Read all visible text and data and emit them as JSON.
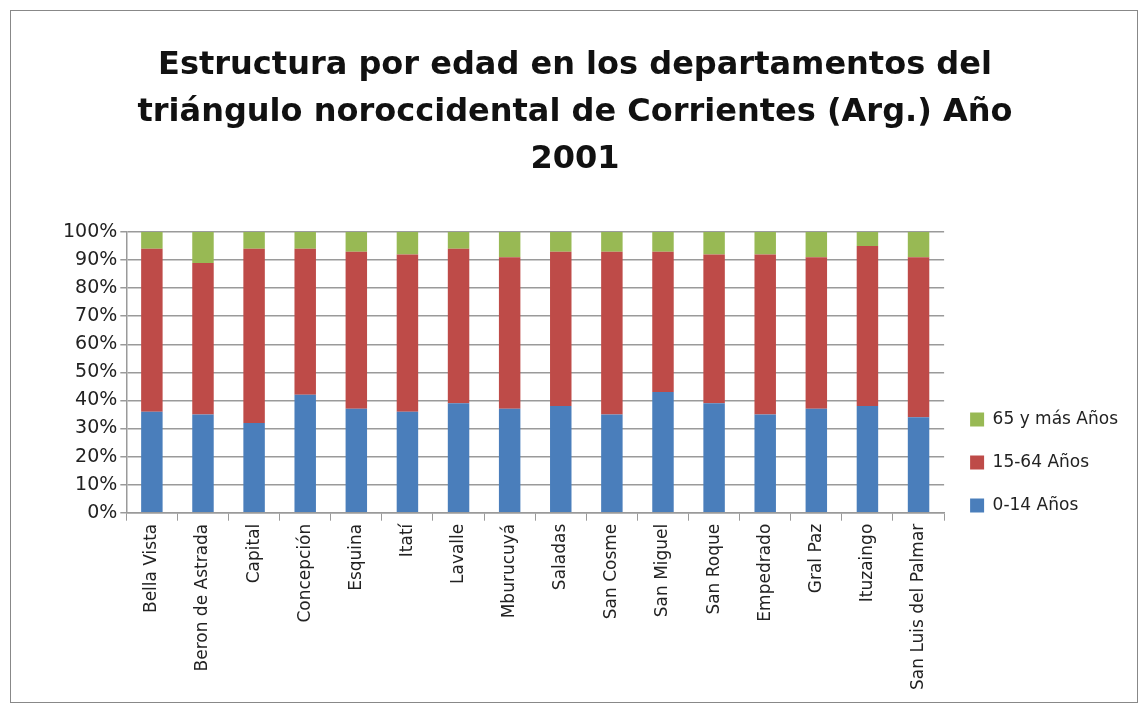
{
  "chart_data": {
    "type": "bar",
    "title": "Estructura por edad en los departamentos del triángulo noroccidental de Corrientes (Arg.) Año 2001",
    "categories": [
      "Bella Vista",
      "Beron de Astrada",
      "Capital",
      "Concepción",
      "Esquina",
      "Itatí",
      "Lavalle",
      "Mburucuyá",
      "Saladas",
      "San Cosme",
      "San Miguel",
      "San Roque",
      "Empedrado",
      "Gral Paz",
      "Ituzaingo",
      "San Luis del Palmar"
    ],
    "series": [
      {
        "name": "0-14 Años",
        "color": "#4a7ebb",
        "values": [
          36,
          35,
          32,
          42,
          37,
          36,
          39,
          37,
          38,
          35,
          43,
          39,
          35,
          37,
          38,
          34
        ]
      },
      {
        "name": "15-64 Años",
        "color": "#be4b48",
        "values": [
          58,
          54,
          62,
          52,
          56,
          56,
          55,
          54,
          55,
          58,
          50,
          53,
          57,
          54,
          57,
          57
        ]
      },
      {
        "name": "65 y más Años",
        "color": "#98b954",
        "values": [
          6,
          11,
          6,
          6,
          7,
          8,
          6,
          9,
          7,
          7,
          7,
          8,
          8,
          9,
          5,
          9
        ]
      }
    ],
    "stacked": true,
    "ylim": [
      0,
      100
    ],
    "yticks": [
      {
        "value": 0,
        "label": "0%"
      },
      {
        "value": 10,
        "label": "10%"
      },
      {
        "value": 20,
        "label": "20%"
      },
      {
        "value": 30,
        "label": "30%"
      },
      {
        "value": 40,
        "label": "40%"
      },
      {
        "value": 50,
        "label": "50%"
      },
      {
        "value": 60,
        "label": "60%"
      },
      {
        "value": 70,
        "label": "70%"
      },
      {
        "value": 80,
        "label": "80%"
      },
      {
        "value": 90,
        "label": "90%"
      },
      {
        "value": 100,
        "label": "100%"
      }
    ],
    "grid": "y",
    "legend": "right"
  }
}
